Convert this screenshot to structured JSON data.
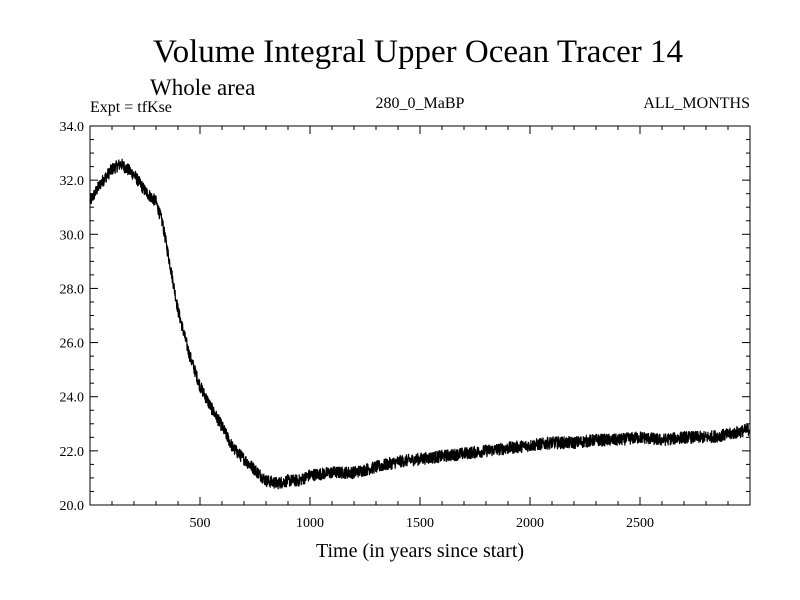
{
  "chart_data": {
    "type": "line",
    "title": "Volume Integral Upper Ocean Tracer 14",
    "subtitle": "Whole area",
    "info_left": "Expt = tfKse",
    "info_center": "280_0_MaBP",
    "info_right": "ALL_MONTHS",
    "xlabel": "Time (in years since start)",
    "ylabel": "",
    "xlim": [
      0,
      3000
    ],
    "ylim": [
      20,
      34
    ],
    "x_ticks": [
      500,
      1000,
      1500,
      2000,
      2500
    ],
    "x_tick_labels": [
      "500",
      "1000",
      "1500",
      "2000",
      "2500"
    ],
    "y_ticks": [
      20,
      22,
      24,
      26,
      28,
      30,
      32,
      34
    ],
    "y_tick_labels": [
      "20.0",
      "22.0",
      "24.0",
      "26.0",
      "28.0",
      "30.0",
      "32.0",
      "34.0"
    ],
    "grid": false,
    "series": [
      {
        "name": "Tracer 14",
        "color": "#000000",
        "x": [
          0,
          50,
          100,
          140,
          200,
          250,
          300,
          330,
          370,
          400,
          450,
          500,
          550,
          600,
          650,
          700,
          750,
          800,
          850,
          900,
          950,
          1000,
          1100,
          1200,
          1300,
          1400,
          1500,
          1600,
          1700,
          1800,
          1900,
          2000,
          2100,
          2200,
          2300,
          2400,
          2500,
          2600,
          2700,
          2800,
          2900,
          3000
        ],
        "values": [
          31.2,
          31.9,
          32.4,
          32.6,
          32.2,
          31.6,
          31.2,
          30.4,
          28.6,
          27.2,
          25.6,
          24.4,
          23.6,
          22.9,
          22.1,
          21.7,
          21.3,
          20.9,
          20.8,
          20.9,
          20.9,
          21.1,
          21.2,
          21.2,
          21.4,
          21.6,
          21.7,
          21.8,
          21.9,
          22.0,
          22.1,
          22.2,
          22.3,
          22.3,
          22.4,
          22.4,
          22.5,
          22.4,
          22.5,
          22.5,
          22.6,
          22.8
        ]
      }
    ]
  }
}
